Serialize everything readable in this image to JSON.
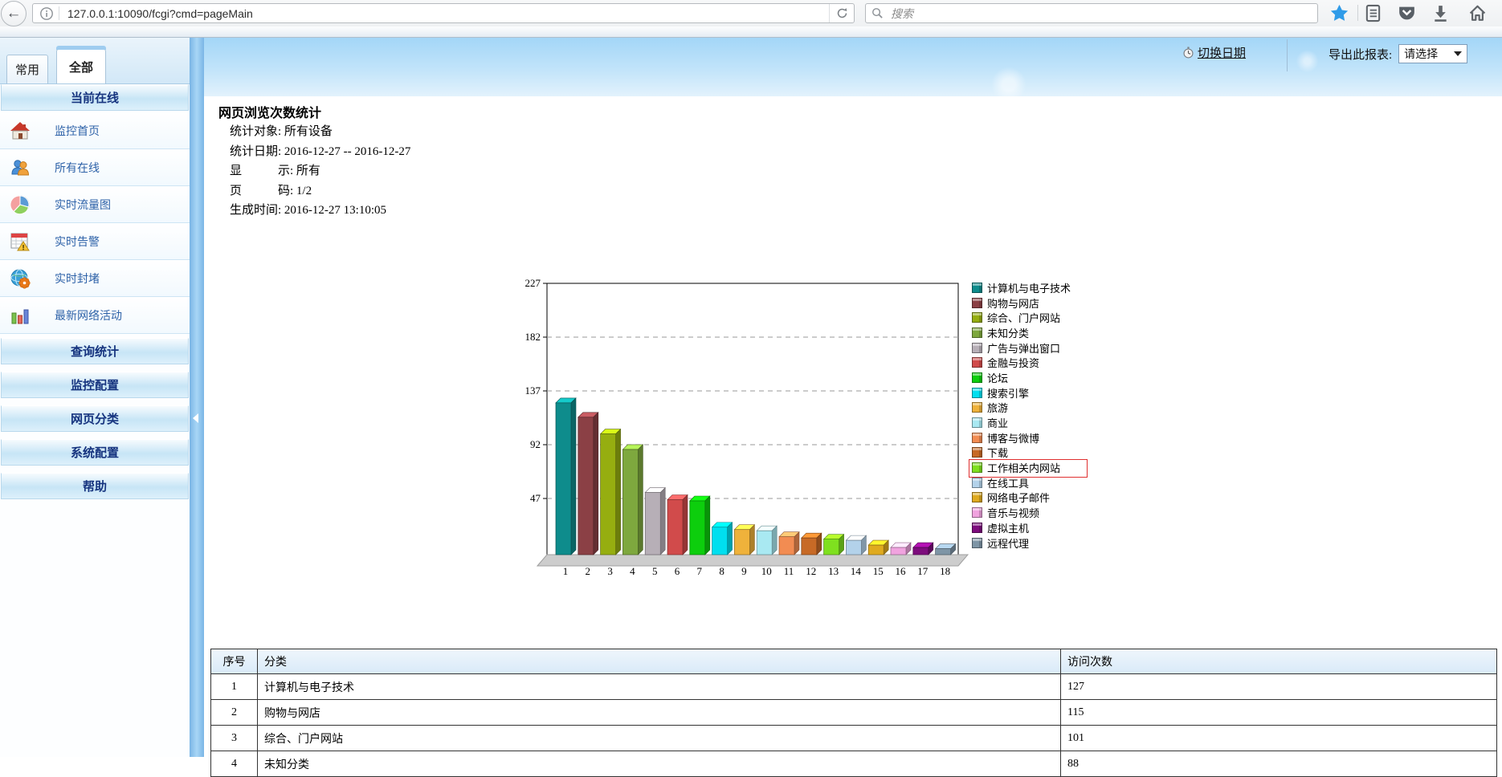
{
  "browser": {
    "url": "127.0.0.1:10090/fcgi?cmd=pageMain",
    "search_placeholder": "搜索"
  },
  "sidebar": {
    "tabs": [
      {
        "label": "常用",
        "active": false
      },
      {
        "label": "全部",
        "active": true
      }
    ],
    "online_section": "当前在线",
    "items": [
      {
        "label": "监控首页",
        "icon": "home-icon"
      },
      {
        "label": "所有在线",
        "icon": "users-icon"
      },
      {
        "label": "实时流量图",
        "icon": "pie-chart-icon"
      },
      {
        "label": "实时告警",
        "icon": "alarm-icon"
      },
      {
        "label": "实时封堵",
        "icon": "globe-gear-icon"
      },
      {
        "label": "最新网络活动",
        "icon": "activity-bars-icon"
      }
    ],
    "section_bars": [
      "查询统计",
      "监控配置",
      "网页分类",
      "系统配置",
      "帮助"
    ]
  },
  "band": {
    "switch_date": "切换日期",
    "export_label": "导出此报表:",
    "export_value": "请选择"
  },
  "report": {
    "title": "网页浏览次数统计",
    "meta": [
      "统计对象: 所有设备",
      "统计日期: 2016-12-27 -- 2016-12-27",
      "显　　　示: 所有",
      "页　　　码: 1/2",
      "生成时间: 2016-12-27 13:10:05"
    ]
  },
  "chart_data": {
    "type": "bar",
    "style": "3d",
    "categories": [
      "1",
      "2",
      "3",
      "4",
      "5",
      "6",
      "7",
      "8",
      "9",
      "10",
      "11",
      "12",
      "13",
      "14",
      "15",
      "16",
      "17",
      "18"
    ],
    "values": [
      127,
      115,
      101,
      88,
      52,
      46,
      45,
      23,
      21,
      20,
      15,
      14,
      13,
      12,
      8,
      6,
      6,
      5
    ],
    "colors": [
      "#0e8c8c",
      "#8b4045",
      "#96ae10",
      "#7ea83e",
      "#b7afb7",
      "#d14b4b",
      "#0dce0d",
      "#00dfef",
      "#efb23b",
      "#a9e9f2",
      "#f28c52",
      "#c76a26",
      "#7fe01f",
      "#b3d2ea",
      "#dfaa1f",
      "#f0a3df",
      "#7d0c7d",
      "#7e95a6"
    ],
    "legend": [
      "计算机与电子技术",
      "购物与网店",
      "综合、门户网站",
      "未知分类",
      "广告与弹出窗口",
      "金融与投资",
      "论坛",
      "搜索引擎",
      "旅游",
      "商业",
      "博客与微博",
      "下载",
      "工作相关内网站",
      "在线工具",
      "网络电子邮件",
      "音乐与视频",
      "虚拟主机",
      "远程代理"
    ],
    "highlighted_legend": "工作相关内网站",
    "highlight_color": "#e03030",
    "yticks": [
      47,
      92,
      137,
      182,
      227
    ],
    "ylim": [
      0,
      227
    ],
    "grid": "dashed-horizontal",
    "legend_position": "right"
  },
  "table": {
    "headers": [
      "序号",
      "分类",
      "访问次数"
    ],
    "rows": [
      [
        "1",
        "计算机与电子技术",
        "127"
      ],
      [
        "2",
        "购物与网店",
        "115"
      ],
      [
        "3",
        "综合、门户网站",
        "101"
      ],
      [
        "4",
        "未知分类",
        "88"
      ]
    ]
  }
}
